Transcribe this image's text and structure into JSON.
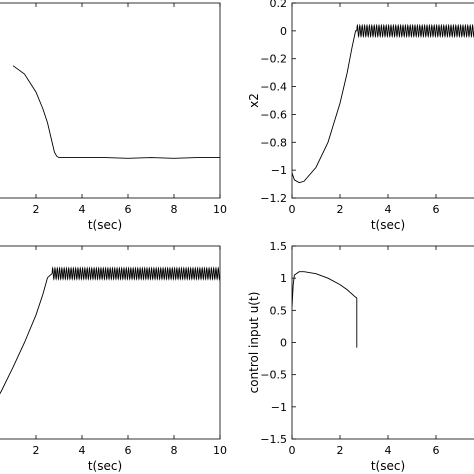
{
  "chart_data": [
    {
      "type": "line",
      "xlabel": "t(sec)",
      "ylabel": "",
      "xlim": [
        0,
        10
      ],
      "ylim": [
        -1.2,
        0.2
      ],
      "xticks": [
        "2",
        "4",
        "6",
        "8",
        "10"
      ],
      "yticks": [],
      "series": [
        {
          "x": [
            1,
            1.5,
            2,
            2.3,
            2.5,
            2.7,
            2.8,
            2.9,
            3.0,
            3.5,
            4,
            5,
            6,
            7,
            8,
            9,
            10
          ],
          "y": [
            -0.25,
            -0.31,
            -0.44,
            -0.56,
            -0.66,
            -0.8,
            -0.87,
            -0.9,
            -0.91,
            -0.91,
            -0.91,
            -0.91,
            -0.915,
            -0.91,
            -0.915,
            -0.91,
            -0.91
          ]
        }
      ]
    },
    {
      "type": "line",
      "xlabel": "t(sec)",
      "ylabel": "x2",
      "xlim": [
        0,
        8
      ],
      "ylim": [
        -1.2,
        0.2
      ],
      "xticks": [
        "0",
        "2",
        "4",
        "6"
      ],
      "yticks": [
        "0.2",
        "0",
        "−0.2",
        "−0.4",
        "−0.6",
        "−0.8",
        "−1",
        "−1.2"
      ],
      "series": [
        {
          "x": [
            0,
            0.1,
            0.3,
            0.5,
            1.0,
            1.5,
            2.0,
            2.3,
            2.5,
            2.65,
            2.7,
            8
          ],
          "y": [
            -1.02,
            -1.07,
            -1.09,
            -1.08,
            -0.98,
            -0.8,
            -0.52,
            -0.3,
            -0.12,
            0.0,
            0.0,
            0.0
          ],
          "oscillation": {
            "from": 2.7,
            "amplitude": 0.04,
            "cycles_per_sec": 10
          }
        }
      ]
    },
    {
      "type": "line",
      "xlabel": "t(sec)",
      "ylabel": "",
      "xlim": [
        0,
        10
      ],
      "ylim": [
        -1.2,
        0.2
      ],
      "xticks": [
        "2",
        "4",
        "6",
        "8",
        "10"
      ],
      "yticks": [],
      "series": [
        {
          "x": [
            0,
            0.5,
            1.0,
            1.5,
            2.0,
            2.3,
            2.5,
            2.7,
            10
          ],
          "y": [
            -1.0,
            -0.85,
            -0.68,
            -0.5,
            -0.3,
            -0.15,
            -0.03,
            0.0,
            0.0
          ],
          "oscillation": {
            "from": 2.7,
            "amplitude": 0.04,
            "cycles_per_sec": 10
          }
        }
      ]
    },
    {
      "type": "line",
      "xlabel": "t(sec)",
      "ylabel": "control input u(t)",
      "xlim": [
        0,
        8
      ],
      "ylim": [
        -1.5,
        1.5
      ],
      "xticks": [
        "0",
        "2",
        "4",
        "6"
      ],
      "yticks": [
        "1.5",
        "1",
        "0.5",
        "0",
        "−0.5",
        "−1",
        "−1.5"
      ],
      "series": [
        {
          "x": [
            0,
            0.05,
            0.1,
            0.3,
            0.5,
            1.0,
            1.5,
            2.0,
            2.3,
            2.6,
            2.7
          ],
          "y": [
            0.55,
            0.9,
            1.05,
            1.1,
            1.1,
            1.07,
            1.0,
            0.9,
            0.82,
            0.72,
            0.69
          ],
          "oscillation": {
            "from": 2.7,
            "center": -0.08,
            "amplitude": 0.94,
            "cycles_per_sec": 10
          }
        }
      ]
    }
  ]
}
